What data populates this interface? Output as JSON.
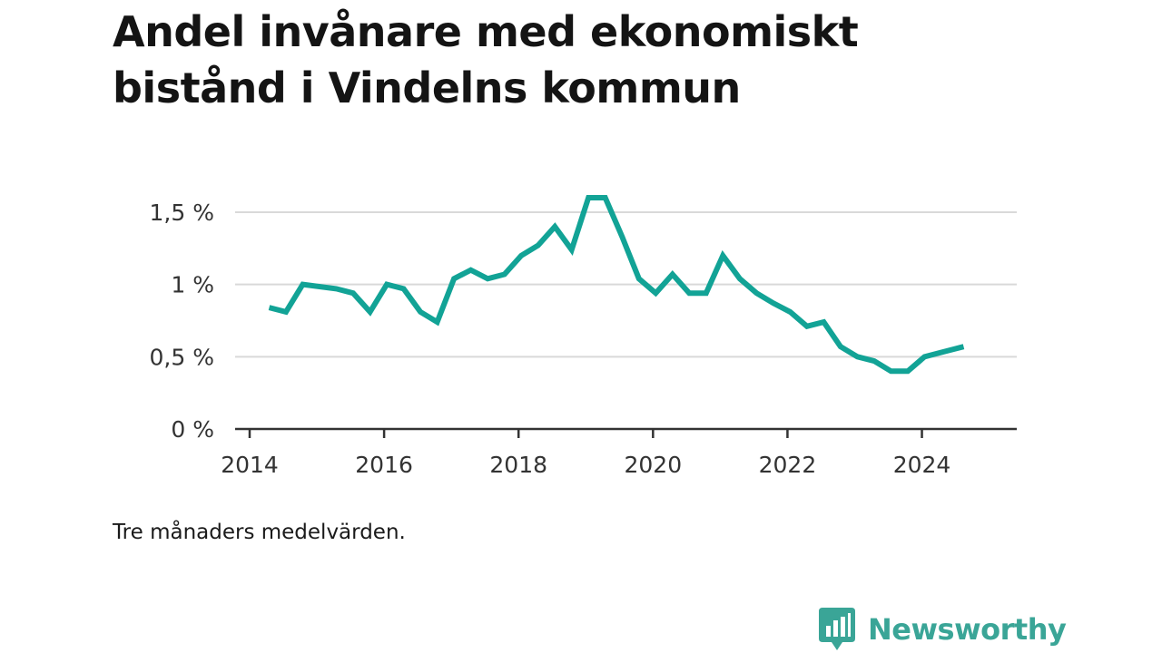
{
  "title": "Andel invånare med ekonomiskt bistånd i Vindelns kommun",
  "note": "Tre månaders medelvärden.",
  "brand": {
    "name": "Newsworthy",
    "logo_icon": "chart-speech-bubble-icon",
    "color": "#3aa597"
  },
  "colors": {
    "line": "#12a396",
    "grid": "#d9d9d9",
    "axis": "#333333"
  },
  "chart_data": {
    "type": "line",
    "title": "Andel invånare med ekonomiskt bistånd i Vindelns kommun",
    "xlabel": "",
    "ylabel": "",
    "xlim": [
      2014,
      2025.1
    ],
    "ylim": [
      0,
      1.6
    ],
    "grid": true,
    "x_ticks": [
      {
        "value": 2014,
        "label": "2014"
      },
      {
        "value": 2016,
        "label": "2016"
      },
      {
        "value": 2018,
        "label": "2018"
      },
      {
        "value": 2020,
        "label": "2020"
      },
      {
        "value": 2022,
        "label": "2022"
      },
      {
        "value": 2024,
        "label": "2024"
      }
    ],
    "y_ticks": [
      {
        "value": 0,
        "label": "0 %"
      },
      {
        "value": 0.5,
        "label": "0,5 %"
      },
      {
        "value": 1,
        "label": "1 %"
      },
      {
        "value": 1.5,
        "label": "1,5 %"
      }
    ],
    "series": [
      {
        "x": [
          2014.29,
          2014.54,
          2014.79,
          2015.29,
          2015.54,
          2015.79,
          2016.04,
          2016.29,
          2016.54,
          2016.79,
          2017.04,
          2017.29,
          2017.54,
          2017.79,
          2018.04,
          2018.29,
          2018.54,
          2018.79,
          2019.04,
          2019.29,
          2019.54,
          2019.79,
          2020.04,
          2020.29,
          2020.54,
          2020.79,
          2021.04,
          2021.29,
          2021.54,
          2021.79,
          2022.04,
          2022.29,
          2022.54,
          2022.79,
          2023.04,
          2023.29,
          2023.54,
          2023.79,
          2024.04,
          2024.29,
          2024.62
        ],
        "y": [
          0.84,
          0.81,
          1.0,
          0.97,
          0.94,
          0.81,
          1.0,
          0.97,
          0.81,
          0.74,
          1.04,
          1.1,
          1.04,
          1.07,
          1.2,
          1.27,
          1.4,
          1.24,
          1.6,
          1.6,
          1.33,
          1.04,
          0.94,
          1.07,
          0.94,
          0.94,
          1.2,
          1.04,
          0.94,
          0.87,
          0.81,
          0.71,
          0.74,
          0.57,
          0.5,
          0.47,
          0.4,
          0.4,
          0.5,
          0.53,
          0.57
        ]
      }
    ]
  }
}
